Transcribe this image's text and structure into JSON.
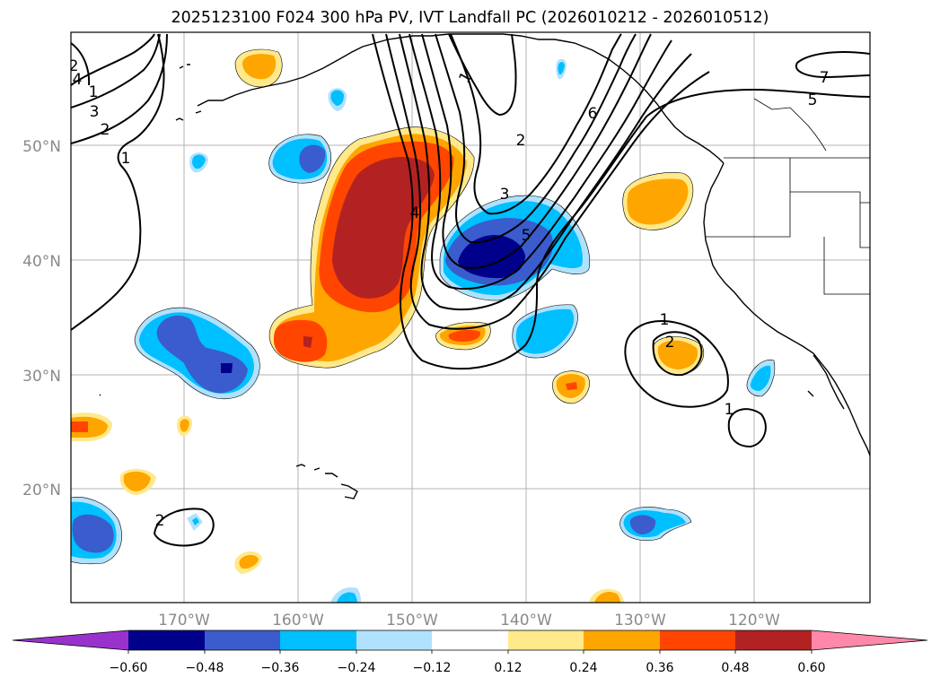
{
  "title": "2025123100 F024 300 hPa PV, IVT Landfall PC (2026010212 - 2026010512)",
  "lat_labels": [
    "50°N",
    "40°N",
    "30°N",
    "20°N"
  ],
  "lon_labels": [
    "170°W",
    "160°W",
    "150°W",
    "140°W",
    "130°W",
    "120°W"
  ],
  "colorbar": {
    "ticks": [
      "−0.60",
      "−0.48",
      "−0.36",
      "−0.24",
      "−0.12",
      "0.12",
      "0.24",
      "0.36",
      "0.48",
      "0.60"
    ],
    "colors": [
      "#9932cc",
      "#00008b",
      "#3a5ccc",
      "#00bfff",
      "#b0e2ff",
      "#ffffff",
      "#ffe98a",
      "#ffa500",
      "#ff4500",
      "#b22222",
      "#ff88aa"
    ]
  },
  "contour_labels": [
    "1",
    "2",
    "3",
    "4",
    "5",
    "6",
    "7",
    "5",
    "4",
    "3",
    "2",
    "1",
    "1",
    "2",
    "1",
    "2",
    "1",
    "2"
  ]
}
